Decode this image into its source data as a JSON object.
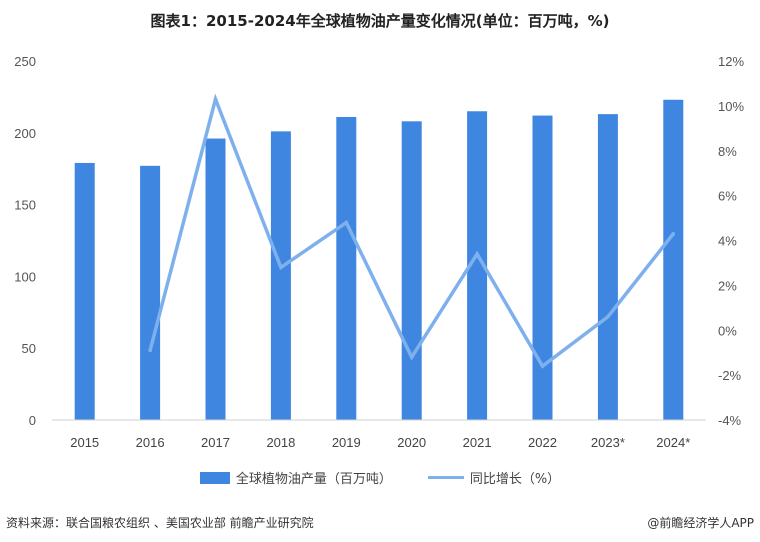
{
  "title": "图表1：2015-2024年全球植物油产量变化情况(单位：百万吨，%)",
  "legend": {
    "bar_label": "全球植物油产量（百万吨）",
    "line_label": "同比增长（%）"
  },
  "footer": {
    "source": "资料来源：联合国粮农组织 、美国农业部 前瞻产业研究院",
    "brand": "@前瞻经济学人APP"
  },
  "colors": {
    "bar": "#3f86e0",
    "line": "#7fb0ee"
  },
  "chart_data": {
    "type": "bar",
    "categories": [
      "2015",
      "2016",
      "2017",
      "2018",
      "2019",
      "2020",
      "2021",
      "2022",
      "2023*",
      "2024*"
    ],
    "series": [
      {
        "name": "全球植物油产量（百万吨）",
        "type": "bar",
        "axis": "left",
        "values": [
          179,
          177,
          196,
          201,
          211,
          208,
          215,
          212,
          213,
          223
        ]
      },
      {
        "name": "同比增长（%）",
        "type": "line",
        "axis": "right",
        "values": [
          null,
          -0.9,
          10.3,
          2.8,
          4.8,
          -1.2,
          3.4,
          -1.6,
          0.6,
          4.3
        ]
      }
    ],
    "y_left": {
      "min": 0,
      "max": 250,
      "ticks": [
        "0",
        "50",
        "100",
        "150",
        "200",
        "250"
      ]
    },
    "y_right": {
      "min": -4,
      "max": 12,
      "ticks": [
        "-4%",
        "-2%",
        "0%",
        "2%",
        "4%",
        "6%",
        "8%",
        "10%",
        "12%"
      ]
    },
    "grid": false,
    "legend_position": "bottom"
  }
}
